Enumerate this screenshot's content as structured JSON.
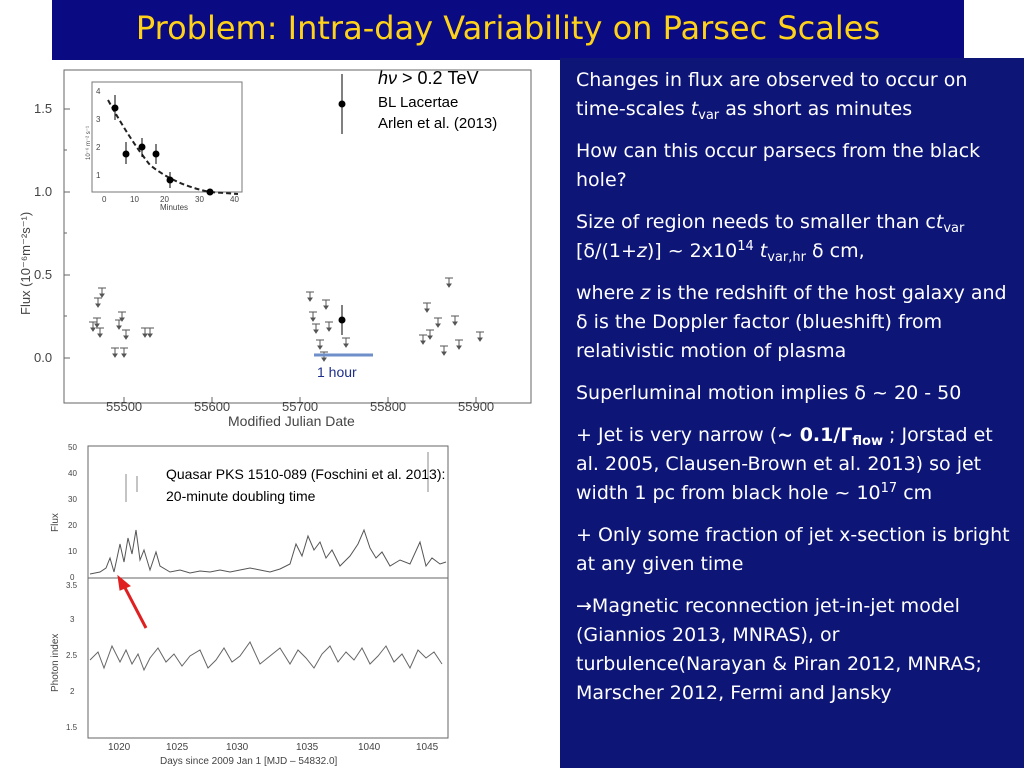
{
  "title": "Problem: Intra-day Variability on Parsec Scales",
  "panel": {
    "p1": {
      "a": "Changes in flux are observed to occur on time-scales ",
      "t": "t",
      "tsub": "var",
      "b": " as short as minutes"
    },
    "p2": "How can this occur parsecs from the black hole?",
    "p3": {
      "a": "Size of region needs to smaller than c",
      "t": "t",
      "tsub": "var",
      "b": " [δ/(1+",
      "z": "z",
      "c": ")] ~ 2x10",
      "exp": "14",
      "d": " ",
      "t2": "t",
      "t2sub": "var,hr",
      "e": " δ   cm,"
    },
    "p4": {
      "a": "where ",
      "z": "z",
      "b": " is the redshift of the host galaxy and δ is the Doppler factor (blueshift) from relativistic motion of plasma"
    },
    "p5": "Superluminal motion implies δ ~ 20 - 50",
    "p6": {
      "a": "+ Jet is very narrow (",
      "b1": "~ 0.1/Γ",
      "b1sub": "flow",
      "c": " ; Jorstad et al. 2005, Clausen-Brown et al. 2013) so jet width 1 pc from black hole  ~ 10",
      "exp": "17",
      "d": " cm"
    },
    "p7": "+ Only some fraction of jet x-section is bright at any given time",
    "p8": {
      "arrow": "→",
      "a": "Magnetic reconnection jet-in-jet model (Giannios 2013, MNRAS), or turbulence(Narayan & Piran 2012, MNRAS; Marscher 2012, Fermi and Jansky"
    }
  },
  "plot1": {
    "hv_italic": "hν",
    "hv_rest": " > 0.2 TeV",
    "source": "BL Lacertae",
    "ref": "Arlen et al. (2013)",
    "hour_label": "1 hour",
    "xlabel": "Modified Julian Date",
    "ylabel": "Flux (10⁻⁶m⁻²s⁻¹)",
    "xticks": [
      "55500",
      "55600",
      "55700",
      "55800",
      "55900"
    ],
    "yticks": [
      "0.0",
      "0.5",
      "1.0",
      "1.5"
    ],
    "inset_xlabel": "Minutes",
    "inset_ylabel": "10⁻⁶ m⁻² s⁻¹",
    "inset_xticks": [
      "0",
      "10",
      "20",
      "30",
      "40"
    ],
    "inset_yticks": [
      "1",
      "2",
      "3",
      "4"
    ]
  },
  "plot2": {
    "caption1": "Quasar PKS 1510-089 (Foschini et al. 2013):",
    "caption2": "20-minute doubling time",
    "xlabel": "Days since 2009 Jan 1 [MJD – 54832.0]",
    "ylabel_top": "Flux",
    "ylabel_bottom": "Photon index",
    "xticks": [
      "1020",
      "1025",
      "1030",
      "1035",
      "1040",
      "1045"
    ],
    "yticks_top": [
      "0",
      "10",
      "20",
      "30",
      "40",
      "50"
    ],
    "yticks_bottom": [
      "1.5",
      "2",
      "2.5",
      "3",
      "3.5"
    ]
  },
  "colors": {
    "title_bg": "#0a0a82",
    "title_text": "#ffd21a",
    "panel_bg": "#0d1577",
    "hour_bar": "#6e8fca",
    "arrow": "#e02020"
  }
}
